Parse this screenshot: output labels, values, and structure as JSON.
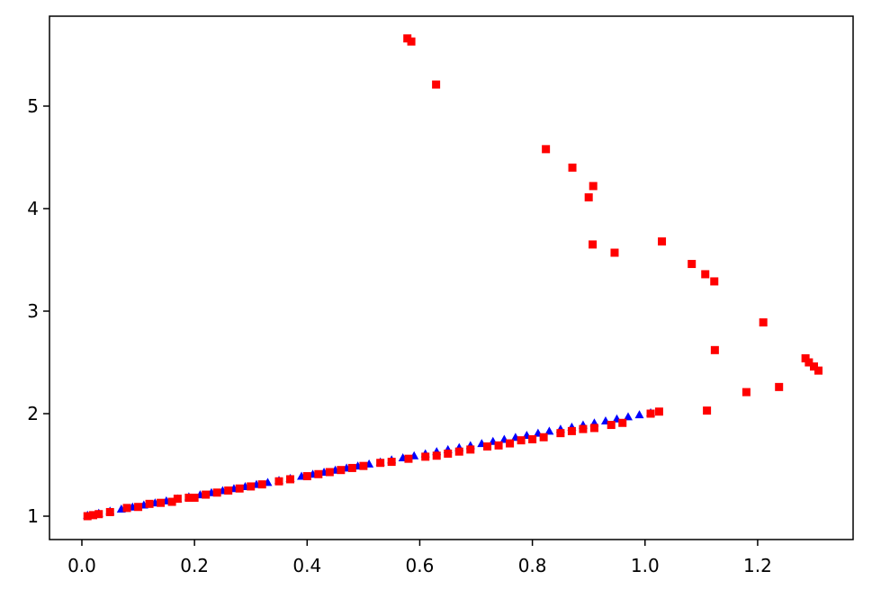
{
  "chart_data": {
    "type": "scatter",
    "xlim": [
      -0.0575,
      1.3695
    ],
    "ylim": [
      0.772,
      5.877
    ],
    "xticks": [
      {
        "value": 0,
        "label": "0.0"
      },
      {
        "value": 0.2,
        "label": "0.2"
      },
      {
        "value": 0.4,
        "label": "0.4"
      },
      {
        "value": 0.6,
        "label": "0.6"
      },
      {
        "value": 0.8,
        "label": "0.8"
      },
      {
        "value": 1.0,
        "label": "1.0"
      },
      {
        "value": 1.2,
        "label": "1.2"
      }
    ],
    "yticks": [
      1,
      2,
      3,
      4,
      5
    ],
    "series": [
      {
        "color": "#0000ff",
        "marker": "triangle",
        "x": [
          0.01,
          0.03,
          0.05,
          0.07,
          0.09,
          0.11,
          0.13,
          0.15,
          0.17,
          0.19,
          0.21,
          0.23,
          0.25,
          0.27,
          0.29,
          0.31,
          0.33,
          0.35,
          0.37,
          0.39,
          0.41,
          0.43,
          0.45,
          0.47,
          0.49,
          0.51,
          0.53,
          0.55,
          0.57,
          0.59,
          0.61,
          0.63,
          0.65,
          0.67,
          0.69,
          0.71,
          0.73,
          0.75,
          0.77,
          0.79,
          0.81,
          0.83,
          0.85,
          0.87,
          0.89,
          0.91,
          0.93,
          0.95,
          0.97,
          0.99,
          1.01
        ],
        "values": [
          1.01,
          1.03,
          1.05,
          1.07,
          1.09,
          1.11,
          1.13,
          1.15,
          1.17,
          1.19,
          1.21,
          1.23,
          1.25,
          1.27,
          1.29,
          1.31,
          1.33,
          1.35,
          1.37,
          1.39,
          1.41,
          1.43,
          1.45,
          1.47,
          1.49,
          1.51,
          1.53,
          1.55,
          1.57,
          1.59,
          1.61,
          1.63,
          1.65,
          1.67,
          1.69,
          1.71,
          1.73,
          1.75,
          1.77,
          1.79,
          1.81,
          1.83,
          1.85,
          1.87,
          1.89,
          1.91,
          1.93,
          1.95,
          1.97,
          1.99,
          2.01
        ]
      },
      {
        "color": "#ff0000",
        "marker": "square",
        "x": [
          0.01,
          0.02,
          0.03,
          0.05,
          0.08,
          0.1,
          0.12,
          0.14,
          0.16,
          0.17,
          0.19,
          0.2,
          0.22,
          0.24,
          0.26,
          0.28,
          0.3,
          0.32,
          0.35,
          0.37,
          0.4,
          0.42,
          0.44,
          0.46,
          0.48,
          0.5,
          0.53,
          0.55,
          0.58,
          0.61,
          0.63,
          0.65,
          0.67,
          0.69,
          0.72,
          0.74,
          0.76,
          0.78,
          0.8,
          0.82,
          0.85,
          0.87,
          0.89,
          0.91,
          0.94,
          0.96,
          1.01,
          0.578,
          0.585,
          0.629,
          0.824,
          0.871,
          0.908,
          0.9,
          0.907,
          0.946,
          1.03,
          1.083,
          1.107,
          1.123,
          1.124,
          1.21,
          1.11,
          1.18,
          1.238,
          1.285,
          1.291,
          1.3,
          1.308,
          1.025
        ],
        "values": [
          1.0,
          1.01,
          1.02,
          1.04,
          1.08,
          1.09,
          1.12,
          1.13,
          1.14,
          1.17,
          1.18,
          1.18,
          1.21,
          1.23,
          1.25,
          1.27,
          1.29,
          1.31,
          1.34,
          1.36,
          1.39,
          1.41,
          1.43,
          1.45,
          1.47,
          1.49,
          1.52,
          1.53,
          1.56,
          1.58,
          1.59,
          1.61,
          1.63,
          1.65,
          1.68,
          1.69,
          1.71,
          1.74,
          1.75,
          1.77,
          1.81,
          1.83,
          1.85,
          1.86,
          1.89,
          1.91,
          2.0,
          5.66,
          5.63,
          5.21,
          4.58,
          4.4,
          4.22,
          4.11,
          3.65,
          3.57,
          3.68,
          3.46,
          3.36,
          3.29,
          2.62,
          2.89,
          2.03,
          2.21,
          2.26,
          2.54,
          2.5,
          2.46,
          2.42,
          2.02
        ]
      }
    ]
  }
}
